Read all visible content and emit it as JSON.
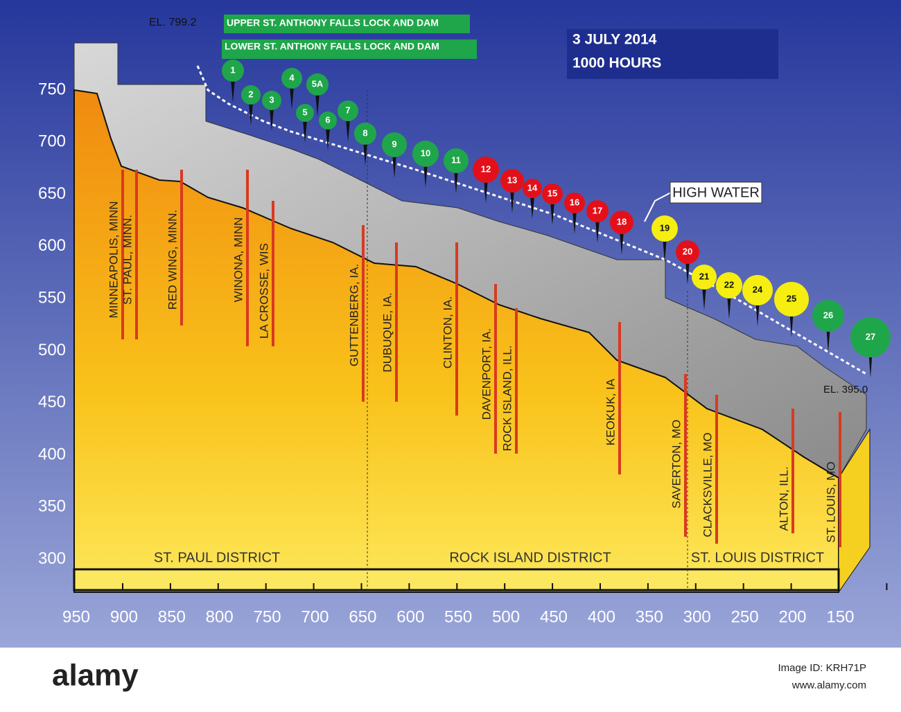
{
  "header": {
    "date": "3 JULY 2014",
    "time": "1000 HOURS"
  },
  "dams": {
    "upper": "UPPER ST. ANTHONY FALLS LOCK AND DAM",
    "lower": "LOWER ST. ANTHONY FALLS LOCK AND DAM"
  },
  "elevations": {
    "start": "EL. 799.2",
    "end": "EL. 395.0"
  },
  "annotation": "HIGH WATER",
  "y_axis": {
    "ticks": [
      750,
      700,
      650,
      600,
      550,
      500,
      450,
      400,
      350,
      300
    ]
  },
  "x_axis": {
    "ticks": [
      950,
      900,
      850,
      800,
      750,
      700,
      650,
      600,
      550,
      500,
      450,
      400,
      350,
      300,
      250,
      200,
      150
    ]
  },
  "locks": [
    {
      "label": "1",
      "color": "#1fa64a"
    },
    {
      "label": "2",
      "color": "#1fa64a"
    },
    {
      "label": "3",
      "color": "#1fa64a"
    },
    {
      "label": "4",
      "color": "#1fa64a"
    },
    {
      "label": "5A",
      "color": "#1fa64a"
    },
    {
      "label": "5",
      "color": "#1fa64a"
    },
    {
      "label": "6",
      "color": "#1fa64a"
    },
    {
      "label": "7",
      "color": "#1fa64a"
    },
    {
      "label": "8",
      "color": "#1fa64a"
    },
    {
      "label": "9",
      "color": "#1fa64a"
    },
    {
      "label": "10",
      "color": "#1fa64a"
    },
    {
      "label": "11",
      "color": "#1fa64a"
    },
    {
      "label": "12",
      "color": "#e3101a"
    },
    {
      "label": "13",
      "color": "#e3101a"
    },
    {
      "label": "14",
      "color": "#e3101a"
    },
    {
      "label": "15",
      "color": "#e3101a"
    },
    {
      "label": "16",
      "color": "#e3101a"
    },
    {
      "label": "17",
      "color": "#e3101a"
    },
    {
      "label": "18",
      "color": "#e3101a"
    },
    {
      "label": "19",
      "color": "#f5ee10"
    },
    {
      "label": "20",
      "color": "#e3101a"
    },
    {
      "label": "21",
      "color": "#f5ee10"
    },
    {
      "label": "22",
      "color": "#f5ee10"
    },
    {
      "label": "24",
      "color": "#f5ee10"
    },
    {
      "label": "25",
      "color": "#f5ee10"
    },
    {
      "label": "26",
      "color": "#1fa64a"
    },
    {
      "label": "27",
      "color": "#1fa64a"
    }
  ],
  "cities": [
    "MINNEAPOLIS, MINN",
    "ST. PAUL, MINN.",
    "RED WING, MINN.",
    "WINONA, MINN",
    "LA CROSSE, WIS",
    "GUTTENBERG, IA.",
    "DUBUQUE, IA.",
    "CLINTON, IA.",
    "DAVENPORT, IA.",
    "ROCK ISLAND, ILL.",
    "KEOKUK, IA",
    "SAVERTON, MO",
    "CLACKSVILLE, MO",
    "ALTON, ILL.",
    "ST. LOUIS, MO"
  ],
  "districts": [
    "ST. PAUL DISTRICT",
    "ROCK ISLAND DISTRICT",
    "ST. LOUIS DISTRICT"
  ],
  "footer": {
    "brand": "alamy",
    "image_id": "Image ID: KRH71P",
    "site": "www.alamy.com"
  }
}
